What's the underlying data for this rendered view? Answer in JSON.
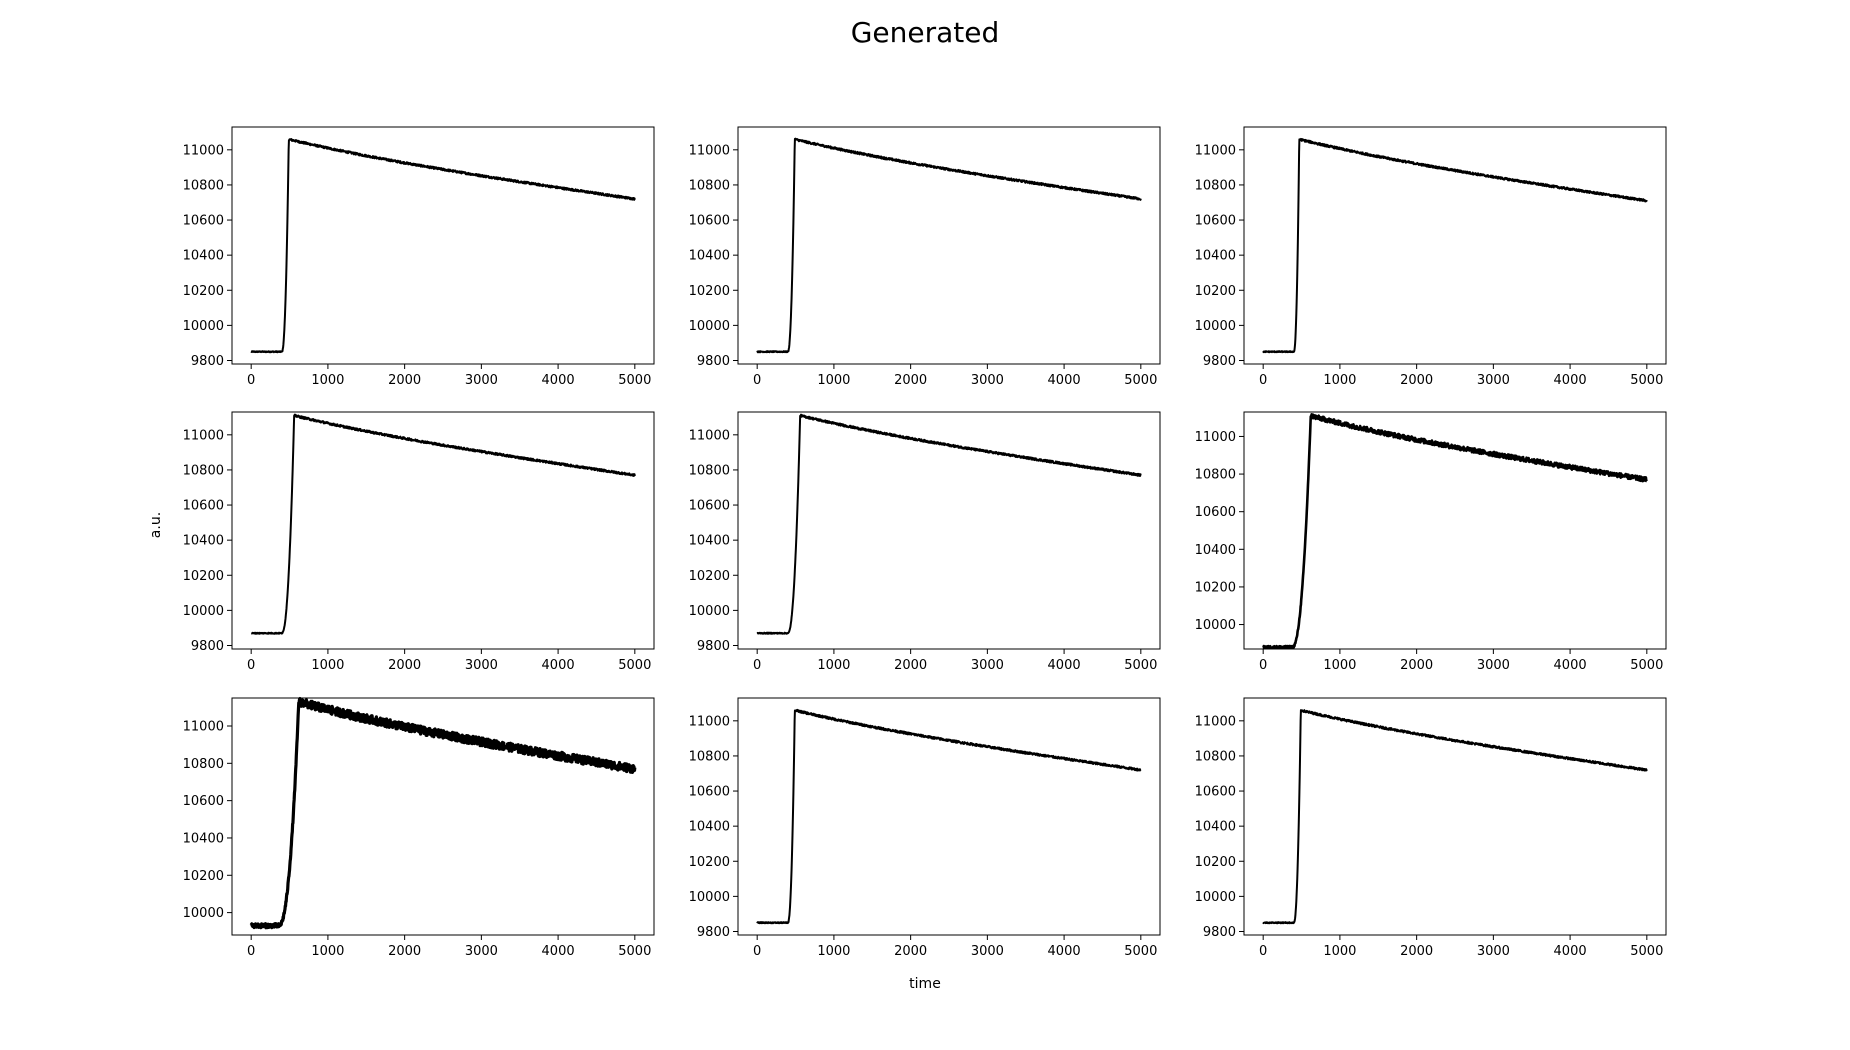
{
  "figure": {
    "title": "Generated",
    "xlabel": "time",
    "ylabel": "a.u."
  },
  "chart_data": [
    {
      "type": "line",
      "panel": "row1-col1",
      "xlim": [
        -250,
        5250
      ],
      "ylim": [
        9780,
        11130
      ],
      "xticks": [
        0,
        1000,
        2000,
        3000,
        4000,
        5000
      ],
      "yticks": [
        9800,
        10000,
        10200,
        10400,
        10600,
        10800,
        11000
      ],
      "baseline": 9850,
      "onset": 400,
      "peak_time": 490,
      "peak": 11060,
      "end": 10720,
      "noise": 6,
      "series": [
        {
          "values": [
            [
              0,
              9850
            ],
            [
              400,
              9850
            ],
            [
              440,
              9930
            ],
            [
              460,
              10400
            ],
            [
              475,
              10880
            ],
            [
              490,
              11060
            ],
            [
              1000,
              11010
            ],
            [
              2000,
              10930
            ],
            [
              3000,
              10850
            ],
            [
              4000,
              10785
            ],
            [
              5000,
              10720
            ]
          ]
        }
      ]
    },
    {
      "type": "line",
      "panel": "row1-col2",
      "xlim": [
        -250,
        5250
      ],
      "ylim": [
        9780,
        11130
      ],
      "xticks": [
        0,
        1000,
        2000,
        3000,
        4000,
        5000
      ],
      "yticks": [
        9800,
        10000,
        10200,
        10400,
        10600,
        10800,
        11000
      ],
      "baseline": 9850,
      "onset": 400,
      "peak_time": 490,
      "peak": 11060,
      "end": 10720,
      "noise": 6,
      "series": [
        {
          "values": [
            [
              0,
              9850
            ],
            [
              400,
              9850
            ],
            [
              440,
              9930
            ],
            [
              460,
              10400
            ],
            [
              475,
              10880
            ],
            [
              490,
              11060
            ],
            [
              1000,
              11010
            ],
            [
              2000,
              10930
            ],
            [
              3000,
              10850
            ],
            [
              4000,
              10785
            ],
            [
              5000,
              10720
            ]
          ]
        }
      ]
    },
    {
      "type": "line",
      "panel": "row1-col3",
      "xlim": [
        -250,
        5250
      ],
      "ylim": [
        9780,
        11130
      ],
      "xticks": [
        0,
        1000,
        2000,
        3000,
        4000,
        5000
      ],
      "yticks": [
        9800,
        10000,
        10200,
        10400,
        10600,
        10800,
        11000
      ],
      "baseline": 9850,
      "onset": 400,
      "peak_time": 470,
      "peak": 11060,
      "end": 10710,
      "noise": 6,
      "series": [
        {
          "values": [
            [
              0,
              9850
            ],
            [
              400,
              9850
            ],
            [
              430,
              9930
            ],
            [
              450,
              10400
            ],
            [
              465,
              10880
            ],
            [
              470,
              11060
            ],
            [
              1000,
              11000
            ],
            [
              2000,
              10920
            ],
            [
              3000,
              10840
            ],
            [
              4000,
              10775
            ],
            [
              5000,
              10710
            ]
          ]
        }
      ]
    },
    {
      "type": "line",
      "panel": "row2-col1",
      "xlim": [
        -250,
        5250
      ],
      "ylim": [
        9780,
        11130
      ],
      "xticks": [
        0,
        1000,
        2000,
        3000,
        4000,
        5000
      ],
      "yticks": [
        9800,
        10000,
        10200,
        10400,
        10600,
        10800,
        11000
      ],
      "baseline": 9870,
      "onset": 400,
      "peak_time": 560,
      "peak": 11110,
      "end": 10770,
      "noise": 6,
      "series": [
        {
          "values": [
            [
              0,
              9870
            ],
            [
              400,
              9870
            ],
            [
              440,
              9950
            ],
            [
              460,
              10400
            ],
            [
              480,
              10900
            ],
            [
              560,
              11110
            ],
            [
              1000,
              11070
            ],
            [
              2000,
              10990
            ],
            [
              3000,
              10910
            ],
            [
              4000,
              10840
            ],
            [
              5000,
              10770
            ]
          ]
        }
      ]
    },
    {
      "type": "line",
      "panel": "row2-col2",
      "xlim": [
        -250,
        5250
      ],
      "ylim": [
        9780,
        11130
      ],
      "xticks": [
        0,
        1000,
        2000,
        3000,
        4000,
        5000
      ],
      "yticks": [
        9800,
        10000,
        10200,
        10400,
        10600,
        10800,
        11000
      ],
      "baseline": 9870,
      "onset": 400,
      "peak_time": 560,
      "peak": 11110,
      "end": 10770,
      "noise": 6,
      "series": [
        {
          "values": [
            [
              0,
              9870
            ],
            [
              400,
              9870
            ],
            [
              440,
              9950
            ],
            [
              460,
              10400
            ],
            [
              480,
              10900
            ],
            [
              560,
              11110
            ],
            [
              1000,
              11070
            ],
            [
              2000,
              10990
            ],
            [
              3000,
              10910
            ],
            [
              4000,
              10840
            ],
            [
              5000,
              10770
            ]
          ]
        }
      ]
    },
    {
      "type": "line",
      "panel": "row2-col3",
      "xlim": [
        -250,
        5250
      ],
      "ylim": [
        9870,
        11130
      ],
      "xticks": [
        0,
        1000,
        2000,
        3000,
        4000,
        5000
      ],
      "yticks": [
        10000,
        10200,
        10400,
        10600,
        10800,
        11000
      ],
      "baseline": 9880,
      "onset": 380,
      "peak_time": 620,
      "peak": 11110,
      "end": 10770,
      "noise": 12,
      "series": [
        {
          "values": [
            [
              0,
              9880
            ],
            [
              380,
              9880
            ],
            [
              430,
              9950
            ],
            [
              460,
              10400
            ],
            [
              500,
              10950
            ],
            [
              620,
              11110
            ],
            [
              1000,
              11080
            ],
            [
              2000,
              10990
            ],
            [
              3000,
              10910
            ],
            [
              4000,
              10840
            ],
            [
              5000,
              10770
            ]
          ]
        }
      ]
    },
    {
      "type": "line",
      "panel": "row3-col1",
      "xlim": [
        -250,
        5250
      ],
      "ylim": [
        9880,
        11150
      ],
      "xticks": [
        0,
        1000,
        2000,
        3000,
        4000,
        5000
      ],
      "yticks": [
        10000,
        10200,
        10400,
        10600,
        10800,
        11000
      ],
      "baseline": 9930,
      "onset": 360,
      "peak_time": 620,
      "peak": 11130,
      "end": 10770,
      "noise": 22,
      "series": [
        {
          "values": [
            [
              0,
              9930
            ],
            [
              360,
              9930
            ],
            [
              430,
              10050
            ],
            [
              460,
              10600
            ],
            [
              500,
              10950
            ],
            [
              620,
              11130
            ],
            [
              1000,
              11090
            ],
            [
              2000,
              10990
            ],
            [
              3000,
              10900
            ],
            [
              4000,
              10830
            ],
            [
              5000,
              10770
            ]
          ]
        }
      ]
    },
    {
      "type": "line",
      "panel": "row3-col2",
      "xlim": [
        -250,
        5250
      ],
      "ylim": [
        9780,
        11130
      ],
      "xticks": [
        0,
        1000,
        2000,
        3000,
        4000,
        5000
      ],
      "yticks": [
        9800,
        10000,
        10200,
        10400,
        10600,
        10800,
        11000
      ],
      "baseline": 9850,
      "onset": 400,
      "peak_time": 490,
      "peak": 11060,
      "end": 10720,
      "noise": 6,
      "series": [
        {
          "values": [
            [
              0,
              9850
            ],
            [
              400,
              9850
            ],
            [
              440,
              9930
            ],
            [
              460,
              10400
            ],
            [
              475,
              10880
            ],
            [
              490,
              11060
            ],
            [
              1000,
              11010
            ],
            [
              2000,
              10930
            ],
            [
              3000,
              10850
            ],
            [
              4000,
              10785
            ],
            [
              5000,
              10720
            ]
          ]
        }
      ]
    },
    {
      "type": "line",
      "panel": "row3-col3",
      "xlim": [
        -250,
        5250
      ],
      "ylim": [
        9780,
        11130
      ],
      "xticks": [
        0,
        1000,
        2000,
        3000,
        4000,
        5000
      ],
      "yticks": [
        9800,
        10000,
        10200,
        10400,
        10600,
        10800,
        11000
      ],
      "baseline": 9850,
      "onset": 400,
      "peak_time": 490,
      "peak": 11060,
      "end": 10720,
      "noise": 6,
      "series": [
        {
          "values": [
            [
              0,
              9850
            ],
            [
              400,
              9850
            ],
            [
              440,
              9930
            ],
            [
              460,
              10400
            ],
            [
              475,
              10880
            ],
            [
              490,
              11060
            ],
            [
              1000,
              11010
            ],
            [
              2000,
              10930
            ],
            [
              3000,
              10850
            ],
            [
              4000,
              10785
            ],
            [
              5000,
              10720
            ]
          ]
        }
      ]
    }
  ]
}
